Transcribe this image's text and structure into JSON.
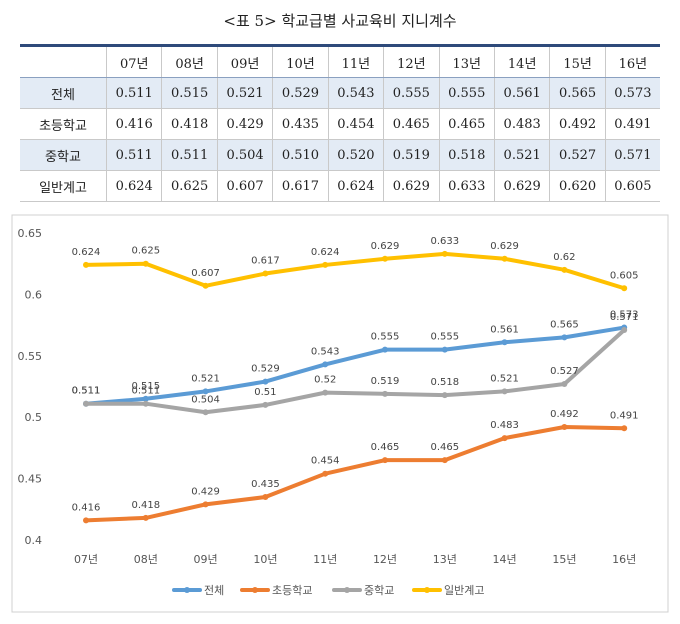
{
  "title": "<표 5> 학교급별 사교육비 지니계수",
  "table": {
    "columns": [
      "",
      "07년",
      "08년",
      "09년",
      "10년",
      "11년",
      "12년",
      "13년",
      "14년",
      "15년",
      "16년"
    ],
    "rows": [
      [
        "전체",
        "0.511",
        "0.515",
        "0.521",
        "0.529",
        "0.543",
        "0.555",
        "0.555",
        "0.561",
        "0.565",
        "0.573"
      ],
      [
        "초등학교",
        "0.416",
        "0.418",
        "0.429",
        "0.435",
        "0.454",
        "0.465",
        "0.465",
        "0.483",
        "0.492",
        "0.491"
      ],
      [
        "중학교",
        "0.511",
        "0.511",
        "0.504",
        "0.510",
        "0.520",
        "0.519",
        "0.518",
        "0.521",
        "0.527",
        "0.571"
      ],
      [
        "일반계고",
        "0.624",
        "0.625",
        "0.607",
        "0.617",
        "0.624",
        "0.629",
        "0.633",
        "0.629",
        "0.620",
        "0.605"
      ]
    ]
  },
  "chart_data": {
    "type": "line",
    "categories": [
      "07년",
      "08년",
      "09년",
      "10년",
      "11년",
      "12년",
      "13년",
      "14년",
      "15년",
      "16년"
    ],
    "series": [
      {
        "name": "전체",
        "color": "#5b9bd5",
        "values": [
          0.511,
          0.515,
          0.521,
          0.529,
          0.543,
          0.555,
          0.555,
          0.561,
          0.565,
          0.573
        ]
      },
      {
        "name": "초등학교",
        "color": "#ed7d31",
        "values": [
          0.416,
          0.418,
          0.429,
          0.435,
          0.454,
          0.465,
          0.465,
          0.483,
          0.492,
          0.491
        ]
      },
      {
        "name": "중학교",
        "color": "#a5a5a5",
        "values": [
          0.511,
          0.511,
          0.504,
          0.51,
          0.52,
          0.519,
          0.518,
          0.521,
          0.527,
          0.571
        ]
      },
      {
        "name": "일반계고",
        "color": "#ffc000",
        "values": [
          0.624,
          0.625,
          0.607,
          0.617,
          0.624,
          0.629,
          0.633,
          0.629,
          0.62,
          0.605
        ]
      }
    ],
    "ylim": [
      0.4,
      0.65
    ],
    "yticks": [
      0.4,
      0.45,
      0.5,
      0.55,
      0.6,
      0.65
    ],
    "legend": "bottom"
  }
}
